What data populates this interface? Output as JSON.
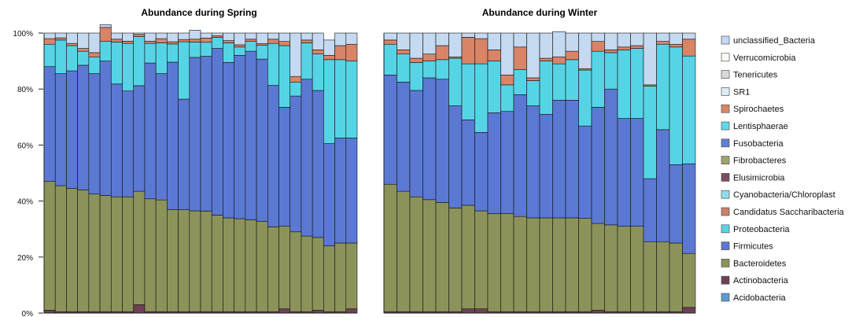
{
  "chart_data": [
    {
      "type": "bar",
      "stacked": true,
      "title": "Abundance during Spring",
      "ylim": [
        0,
        100
      ],
      "y_ticks": [
        "0%",
        "20%",
        "40%",
        "60%",
        "80%",
        "100%"
      ],
      "grid": false,
      "legend": "right",
      "bar_count": 28,
      "series": [
        {
          "name": "Actinobacteria",
          "values": [
            1,
            0.5,
            0.5,
            0.5,
            0.5,
            0.5,
            0.5,
            0.5,
            3,
            0.5,
            0.5,
            0.5,
            0.5,
            0.5,
            0.5,
            0.5,
            0.5,
            0.5,
            0.5,
            0.5,
            0.5,
            1.5,
            0.5,
            0.5,
            1,
            0.5,
            0.5,
            1.5
          ]
        },
        {
          "name": "Bacteroidetes",
          "values": [
            46,
            45,
            44,
            43.5,
            42,
            41.5,
            41,
            41,
            40.5,
            40.3,
            39.9,
            36.5,
            36.4,
            36,
            35.9,
            34.5,
            33.5,
            33.2,
            32.8,
            32.2,
            30.3,
            29.5,
            28.5,
            27,
            26,
            23.5,
            24.5,
            23.5
          ]
        },
        {
          "name": "Firmicutes",
          "values": [
            41,
            40,
            42,
            44.5,
            43,
            48,
            40.3,
            37.8,
            37.7,
            48.5,
            45.1,
            52.6,
            39.5,
            54.8,
            55.3,
            59.5,
            55.5,
            58.3,
            60.2,
            58,
            50.5,
            42.5,
            48.5,
            56,
            52.5,
            36.5,
            37.5,
            37.5
          ]
        },
        {
          "name": "Proteobacteria",
          "values": [
            8,
            12,
            9,
            5,
            6,
            7,
            15,
            17,
            17.5,
            7,
            11,
            6.5,
            20.5,
            5.5,
            5,
            4,
            7,
            3,
            3.5,
            5,
            15,
            22,
            5,
            13,
            13,
            30,
            28,
            27.5
          ]
        },
        {
          "name": "Spirochaetes",
          "values": [
            2,
            0.8,
            0.8,
            1,
            1.5,
            5,
            1,
            0.8,
            0.8,
            0.8,
            1.5,
            0.8,
            0.8,
            1,
            1.5,
            0.5,
            0.8,
            0.8,
            0.8,
            0.5,
            1.5,
            1.5,
            2,
            1,
            1.5,
            1.5,
            5,
            6
          ]
        },
        {
          "name": "unclassified_Bacteria",
          "values": [
            2,
            1.7,
            3.7,
            5.5,
            7,
            1,
            2.2,
            2.9,
            0.5,
            2.9,
            2,
            3.1,
            2.3,
            3.2,
            1.8,
            1,
            2.7,
            4.2,
            2.2,
            3.8,
            2.2,
            3,
            15.5,
            2.5,
            6,
            5.5,
            4.5,
            4
          ]
        }
      ]
    },
    {
      "type": "bar",
      "stacked": true,
      "title": "Abundance during Winter",
      "ylim": [
        0,
        100
      ],
      "grid": false,
      "legend": "right",
      "bar_count": 24,
      "series": [
        {
          "name": "Actinobacteria",
          "values": [
            0.5,
            0.5,
            0.5,
            0.5,
            0.5,
            0.5,
            1.5,
            1.5,
            0.5,
            0.5,
            0.5,
            0.5,
            0.5,
            0.5,
            0.5,
            0.5,
            1,
            0.5,
            0.5,
            0.5,
            0.5,
            0.5,
            0.5,
            2
          ]
        },
        {
          "name": "Bacteroidetes",
          "values": [
            45.5,
            43,
            41,
            40,
            39,
            37,
            37,
            35,
            35,
            35,
            34,
            33.5,
            33.5,
            33.5,
            33.5,
            33.3,
            31,
            31,
            30.5,
            30.5,
            25,
            25,
            24.5,
            19.3
          ]
        },
        {
          "name": "Firmicutes",
          "values": [
            39,
            39,
            38,
            43.5,
            44,
            36.5,
            30.5,
            28,
            36,
            36.5,
            43.5,
            40,
            37,
            42,
            42,
            33,
            41.5,
            48.5,
            38.5,
            38.5,
            22.5,
            40,
            28,
            32
          ]
        },
        {
          "name": "Proteobacteria",
          "values": [
            11,
            10,
            10,
            6,
            7,
            17,
            20,
            24.5,
            18.5,
            9.5,
            9,
            9,
            19,
            13,
            14.5,
            20,
            20,
            13,
            24.5,
            25,
            33,
            30.5,
            42,
            38.5
          ]
        },
        {
          "name": "Spirochaetes",
          "values": [
            1.5,
            1.5,
            1.5,
            2.5,
            5,
            0.5,
            9.5,
            9,
            4,
            3.5,
            8,
            1,
            1,
            2.5,
            3,
            0.5,
            3.5,
            1,
            1,
            1,
            0.5,
            1,
            1,
            6
          ]
        },
        {
          "name": "unclassified_Bacteria",
          "values": [
            2.5,
            6,
            9,
            7.5,
            4.5,
            8.5,
            1.5,
            2,
            6,
            15,
            5,
            16,
            9,
            9,
            6.5,
            12.7,
            3,
            6,
            5,
            4.5,
            18.5,
            3,
            4,
            2.2
          ]
        }
      ]
    }
  ],
  "legend": [
    {
      "name": "unclassified_Bacteria",
      "color": "#c5d9f1"
    },
    {
      "name": "Verrucomicrobia",
      "color": "#fdfdf5"
    },
    {
      "name": "Tenericutes",
      "color": "#d9d9d9"
    },
    {
      "name": "SR1",
      "color": "#dbeef8"
    },
    {
      "name": "Spirochaetes",
      "color": "#d98467"
    },
    {
      "name": "Lentisphaerae",
      "color": "#5fd8e8"
    },
    {
      "name": "Fusobacteria",
      "color": "#6080d6"
    },
    {
      "name": "Fibrobacteres",
      "color": "#9ea370"
    },
    {
      "name": "Elusimicrobia",
      "color": "#7b4b63"
    },
    {
      "name": "Cyanobacteria/Chloroplast",
      "color": "#8fdcea"
    },
    {
      "name": "Candidatus Saccharibacteria",
      "color": "#c8806a"
    },
    {
      "name": "Proteobacteria",
      "color": "#56d4e6"
    },
    {
      "name": "Firmicutes",
      "color": "#5b78d3"
    },
    {
      "name": "Bacteroidetes",
      "color": "#8c935a"
    },
    {
      "name": "Actinobacteria",
      "color": "#6e4058"
    },
    {
      "name": "Acidobacteria",
      "color": "#5b9bd5"
    }
  ],
  "series_colors": {
    "Actinobacteria": "#6e4058",
    "Bacteroidetes": "#8c935a",
    "Firmicutes": "#5b78d3",
    "Proteobacteria": "#56d4e6",
    "Spirochaetes": "#d98467",
    "unclassified_Bacteria": "#c5d9f1"
  }
}
